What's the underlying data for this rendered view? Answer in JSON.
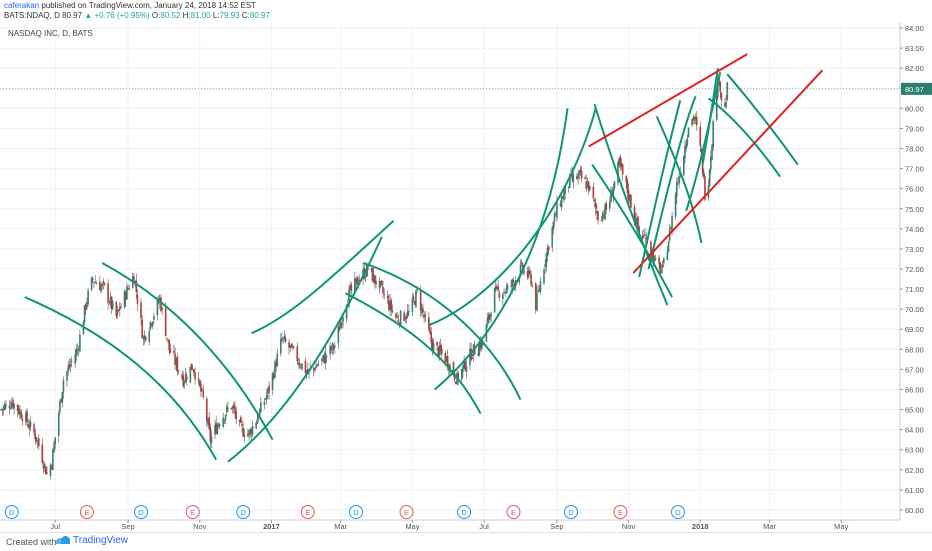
{
  "header": {
    "author": "caferakan",
    "published_text": "published on TradingView.com, January 24, 2018 14:52 EST",
    "symbol_line": "BATS:NDAQ, D",
    "last_price": "80.97",
    "change": "▲ +0.76 (+0.95%)",
    "ohlc": {
      "o_label": "O:",
      "o": "80.52",
      "h_label": "H:",
      "h": "81.00",
      "l_label": "L:",
      "l": "79.93",
      "c_label": "C:",
      "c": "80.97"
    }
  },
  "footer": {
    "created_with": "Created with",
    "brand": "TradingView"
  },
  "chart_data": {
    "type": "candlestick",
    "title": "NASDAQ INC, D, BATS",
    "last_price_label": "80.97",
    "ylim": [
      59.5,
      84.3
    ],
    "y_ticks": [
      "60.00",
      "61.00",
      "62.00",
      "63.00",
      "64.00",
      "65.00",
      "66.00",
      "67.00",
      "68.00",
      "69.00",
      "70.00",
      "71.00",
      "72.00",
      "73.00",
      "74.00",
      "75.00",
      "76.00",
      "77.00",
      "78.00",
      "79.00",
      "80.00",
      "81.00",
      "82.00",
      "83.00",
      "84.00"
    ],
    "x_ticks": [
      {
        "label": "Jul",
        "date": "2016-07-01"
      },
      {
        "label": "Sep",
        "date": "2016-09-01"
      },
      {
        "label": "Nov",
        "date": "2016-11-01"
      },
      {
        "label": "2017",
        "date": "2017-01-01"
      },
      {
        "label": "Mar",
        "date": "2017-03-01"
      },
      {
        "label": "May",
        "date": "2017-05-01"
      },
      {
        "label": "Jul",
        "date": "2017-07-01"
      },
      {
        "label": "Sep",
        "date": "2017-09-01"
      },
      {
        "label": "Nov",
        "date": "2017-11-01"
      },
      {
        "label": "2018",
        "date": "2018-01-01"
      },
      {
        "label": "Mar",
        "date": "2018-03-01"
      },
      {
        "label": "May",
        "date": "2018-05-01"
      }
    ],
    "x_range": [
      "2016-05-15",
      "2018-06-20"
    ],
    "close_path": [
      {
        "d": "2016-05-16",
        "c": 65.0
      },
      {
        "d": "2016-05-25",
        "c": 65.4
      },
      {
        "d": "2016-06-05",
        "c": 64.6
      },
      {
        "d": "2016-06-15",
        "c": 63.6
      },
      {
        "d": "2016-06-24",
        "c": 61.8
      },
      {
        "d": "2016-06-28",
        "c": 62.4
      },
      {
        "d": "2016-07-08",
        "c": 66.5
      },
      {
        "d": "2016-07-20",
        "c": 68.0
      },
      {
        "d": "2016-07-28",
        "c": 70.5
      },
      {
        "d": "2016-08-02",
        "c": 71.5
      },
      {
        "d": "2016-08-12",
        "c": 71.0
      },
      {
        "d": "2016-08-22",
        "c": 69.6
      },
      {
        "d": "2016-09-02",
        "c": 71.2
      },
      {
        "d": "2016-09-06",
        "c": 71.7
      },
      {
        "d": "2016-09-14",
        "c": 68.5
      },
      {
        "d": "2016-09-28",
        "c": 70.5
      },
      {
        "d": "2016-10-06",
        "c": 68.0
      },
      {
        "d": "2016-10-18",
        "c": 66.5
      },
      {
        "d": "2016-10-26",
        "c": 67.2
      },
      {
        "d": "2016-11-04",
        "c": 65.5
      },
      {
        "d": "2016-11-10",
        "c": 63.5
      },
      {
        "d": "2016-11-18",
        "c": 64.5
      },
      {
        "d": "2016-11-28",
        "c": 65.2
      },
      {
        "d": "2016-12-06",
        "c": 64.0
      },
      {
        "d": "2016-12-13",
        "c": 63.8
      },
      {
        "d": "2016-12-20",
        "c": 64.6
      },
      {
        "d": "2016-12-30",
        "c": 66.0
      },
      {
        "d": "2017-01-10",
        "c": 68.5
      },
      {
        "d": "2017-01-20",
        "c": 67.8
      },
      {
        "d": "2017-02-01",
        "c": 66.8
      },
      {
        "d": "2017-02-14",
        "c": 67.5
      },
      {
        "d": "2017-02-24",
        "c": 68.2
      },
      {
        "d": "2017-03-06",
        "c": 70.5
      },
      {
        "d": "2017-03-16",
        "c": 71.5
      },
      {
        "d": "2017-03-24",
        "c": 72.0
      },
      {
        "d": "2017-04-04",
        "c": 71.0
      },
      {
        "d": "2017-04-18",
        "c": 69.5
      },
      {
        "d": "2017-04-28",
        "c": 69.8
      },
      {
        "d": "2017-05-05",
        "c": 70.8
      },
      {
        "d": "2017-05-18",
        "c": 68.2
      },
      {
        "d": "2017-05-30",
        "c": 67.5
      },
      {
        "d": "2017-06-08",
        "c": 66.5
      },
      {
        "d": "2017-06-20",
        "c": 67.8
      },
      {
        "d": "2017-06-30",
        "c": 68.4
      },
      {
        "d": "2017-07-10",
        "c": 70.8
      },
      {
        "d": "2017-07-22",
        "c": 71.0
      },
      {
        "d": "2017-08-02",
        "c": 72.0
      },
      {
        "d": "2017-08-10",
        "c": 71.5
      },
      {
        "d": "2017-08-14",
        "c": 70.2
      },
      {
        "d": "2017-08-22",
        "c": 72.5
      },
      {
        "d": "2017-09-01",
        "c": 75.0
      },
      {
        "d": "2017-09-12",
        "c": 76.4
      },
      {
        "d": "2017-09-20",
        "c": 76.6
      },
      {
        "d": "2017-09-28",
        "c": 76.1
      },
      {
        "d": "2017-10-06",
        "c": 74.6
      },
      {
        "d": "2017-10-14",
        "c": 75.0
      },
      {
        "d": "2017-10-24",
        "c": 77.2
      },
      {
        "d": "2017-11-02",
        "c": 75.5
      },
      {
        "d": "2017-11-10",
        "c": 73.8
      },
      {
        "d": "2017-11-18",
        "c": 73.4
      },
      {
        "d": "2017-11-24",
        "c": 72.2
      },
      {
        "d": "2017-11-30",
        "c": 71.9
      },
      {
        "d": "2017-12-06",
        "c": 73.8
      },
      {
        "d": "2017-12-12",
        "c": 76.2
      },
      {
        "d": "2017-12-18",
        "c": 77.8
      },
      {
        "d": "2017-12-22",
        "c": 79.2
      },
      {
        "d": "2017-12-27",
        "c": 79.6
      },
      {
        "d": "2018-01-02",
        "c": 77.6
      },
      {
        "d": "2018-01-06",
        "c": 75.2
      },
      {
        "d": "2018-01-10",
        "c": 77.8
      },
      {
        "d": "2018-01-14",
        "c": 80.6
      },
      {
        "d": "2018-01-17",
        "c": 81.6
      },
      {
        "d": "2018-01-19",
        "c": 80.5
      },
      {
        "d": "2018-01-22",
        "c": 80.0
      },
      {
        "d": "2018-01-24",
        "c": 80.97
      }
    ],
    "arcs": [
      {
        "color": "teal",
        "points": [
          {
            "d": "2016-06-05",
            "v": 70.6
          },
          {
            "d": "2016-08-15",
            "v": 68.8
          },
          {
            "d": "2016-10-10",
            "v": 66.3
          },
          {
            "d": "2016-11-15",
            "v": 62.5
          }
        ]
      },
      {
        "color": "teal",
        "points": [
          {
            "d": "2016-08-10",
            "v": 72.3
          },
          {
            "d": "2016-10-15",
            "v": 70.2
          },
          {
            "d": "2016-12-01",
            "v": 67.0
          },
          {
            "d": "2017-01-02",
            "v": 63.5
          }
        ]
      },
      {
        "color": "teal",
        "points": [
          {
            "d": "2016-11-25",
            "v": 62.4
          },
          {
            "d": "2017-01-10",
            "v": 64.5
          },
          {
            "d": "2017-02-20",
            "v": 68.0
          },
          {
            "d": "2017-04-05",
            "v": 73.6
          }
        ]
      },
      {
        "color": "teal",
        "points": [
          {
            "d": "2016-12-15",
            "v": 68.8
          },
          {
            "d": "2017-01-20",
            "v": 69.7
          },
          {
            "d": "2017-02-25",
            "v": 71.8
          },
          {
            "d": "2017-04-15",
            "v": 74.4
          }
        ]
      },
      {
        "color": "teal",
        "points": [
          {
            "d": "2017-03-05",
            "v": 70.8
          },
          {
            "d": "2017-04-20",
            "v": 69.4
          },
          {
            "d": "2017-06-01",
            "v": 67.8
          },
          {
            "d": "2017-06-28",
            "v": 64.8
          }
        ]
      },
      {
        "color": "teal",
        "points": [
          {
            "d": "2017-03-20",
            "v": 72.3
          },
          {
            "d": "2017-05-15",
            "v": 71.2
          },
          {
            "d": "2017-07-05",
            "v": 68.8
          },
          {
            "d": "2017-08-01",
            "v": 65.5
          }
        ]
      },
      {
        "color": "teal",
        "points": [
          {
            "d": "2017-05-20",
            "v": 66.0
          },
          {
            "d": "2017-07-10",
            "v": 68.5
          },
          {
            "d": "2017-08-25",
            "v": 73.0
          },
          {
            "d": "2017-09-10",
            "v": 80.0
          }
        ]
      },
      {
        "color": "teal",
        "points": [
          {
            "d": "2017-05-15",
            "v": 69.2
          },
          {
            "d": "2017-07-10",
            "v": 70.5
          },
          {
            "d": "2017-09-10",
            "v": 74.8
          },
          {
            "d": "2017-10-04",
            "v": 80.0
          }
        ]
      },
      {
        "color": "teal",
        "points": [
          {
            "d": "2017-10-03",
            "v": 80.2
          },
          {
            "d": "2017-10-25",
            "v": 76.0
          },
          {
            "d": "2017-11-20",
            "v": 72.2
          },
          {
            "d": "2017-12-04",
            "v": 70.2
          }
        ]
      },
      {
        "color": "teal",
        "points": [
          {
            "d": "2017-10-01",
            "v": 77.2
          },
          {
            "d": "2017-10-30",
            "v": 74.7
          },
          {
            "d": "2017-11-18",
            "v": 72.8
          },
          {
            "d": "2017-12-08",
            "v": 70.6
          }
        ]
      },
      {
        "color": "teal",
        "points": [
          {
            "d": "2017-11-10",
            "v": 71.6
          },
          {
            "d": "2017-11-22",
            "v": 74.8
          },
          {
            "d": "2017-12-05",
            "v": 78.2
          },
          {
            "d": "2017-12-15",
            "v": 80.4
          }
        ]
      },
      {
        "color": "teal",
        "points": [
          {
            "d": "2017-11-18",
            "v": 72.0
          },
          {
            "d": "2017-12-02",
            "v": 75.5
          },
          {
            "d": "2017-12-16",
            "v": 78.8
          },
          {
            "d": "2017-12-28",
            "v": 80.6
          }
        ]
      },
      {
        "color": "teal",
        "points": [
          {
            "d": "2017-11-25",
            "v": 79.6
          },
          {
            "d": "2017-12-10",
            "v": 77.6
          },
          {
            "d": "2017-12-25",
            "v": 75.6
          },
          {
            "d": "2018-01-02",
            "v": 73.3
          }
        ]
      },
      {
        "color": "teal",
        "points": [
          {
            "d": "2017-12-20",
            "v": 74.9
          },
          {
            "d": "2018-01-02",
            "v": 77.2
          },
          {
            "d": "2018-01-12",
            "v": 80.2
          },
          {
            "d": "2018-01-18",
            "v": 81.8
          }
        ]
      },
      {
        "color": "teal",
        "points": [
          {
            "d": "2018-01-03",
            "v": 77.2
          },
          {
            "d": "2018-01-10",
            "v": 79.6
          },
          {
            "d": "2018-01-16",
            "v": 82.0
          }
        ]
      },
      {
        "color": "teal",
        "points": [
          {
            "d": "2018-01-08",
            "v": 80.5
          },
          {
            "d": "2018-02-05",
            "v": 79.3
          },
          {
            "d": "2018-03-10",
            "v": 76.6
          }
        ]
      },
      {
        "color": "teal",
        "points": [
          {
            "d": "2018-01-24",
            "v": 81.7
          },
          {
            "d": "2018-02-25",
            "v": 79.5
          },
          {
            "d": "2018-03-25",
            "v": 77.2
          }
        ]
      }
    ],
    "trendlines": [
      {
        "color": "red",
        "from": {
          "d": "2017-09-28",
          "v": 78.1
        },
        "to": {
          "d": "2018-02-10",
          "v": 82.7
        }
      },
      {
        "color": "red",
        "from": {
          "d": "2017-11-05",
          "v": 71.8
        },
        "to": {
          "d": "2018-04-15",
          "v": 81.9
        }
      }
    ],
    "events": [
      {
        "label": "D",
        "date": "2016-05-25",
        "kind": "dividend"
      },
      {
        "label": "E",
        "date": "2016-07-28",
        "kind": "earnings"
      },
      {
        "label": "D",
        "date": "2016-09-12",
        "kind": "dividend"
      },
      {
        "label": "E",
        "date": "2016-10-26",
        "kind": "earnings"
      },
      {
        "label": "D",
        "date": "2016-12-08",
        "kind": "dividend"
      },
      {
        "label": "E",
        "date": "2017-02-01",
        "kind": "earnings"
      },
      {
        "label": "D",
        "date": "2017-03-14",
        "kind": "dividend"
      },
      {
        "label": "E",
        "date": "2017-04-26",
        "kind": "earnings"
      },
      {
        "label": "D",
        "date": "2017-06-14",
        "kind": "dividend"
      },
      {
        "label": "E",
        "date": "2017-07-26",
        "kind": "earnings"
      },
      {
        "label": "D",
        "date": "2017-09-13",
        "kind": "dividend"
      },
      {
        "label": "E",
        "date": "2017-10-25",
        "kind": "earnings"
      },
      {
        "label": "D",
        "date": "2017-12-13",
        "kind": "dividend"
      }
    ]
  }
}
